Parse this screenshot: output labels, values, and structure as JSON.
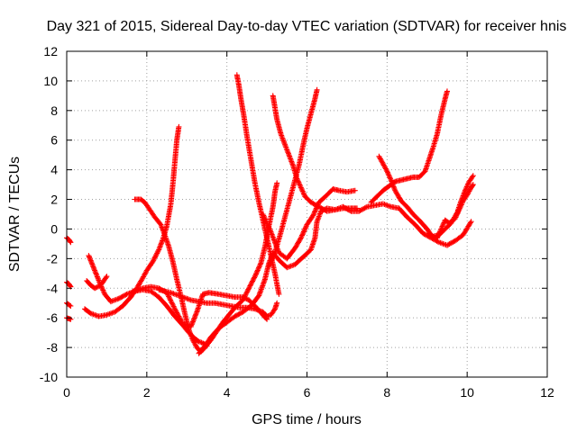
{
  "chart_data": {
    "type": "scatter",
    "title": "Day 321 of 2015, Sidereal Day-to-day VTEC variation (SDTVAR) for receiver hnis",
    "xlabel": "GPS time / hours",
    "ylabel": "SDTVAR / TECUs",
    "xlim": [
      0,
      12
    ],
    "ylim": [
      -10,
      12
    ],
    "xticks": [
      "0",
      "2",
      "4",
      "6",
      "8",
      "10",
      "12"
    ],
    "yticks": [
      "-10",
      "-8",
      "-6",
      "-4",
      "-2",
      "0",
      "2",
      "4",
      "6",
      "8",
      "10",
      "12"
    ],
    "grid": true,
    "legend": "none",
    "marker": "plus",
    "color": "#ff0000",
    "series": [
      {
        "points": [
          [
            0.0,
            -0.6
          ],
          [
            0.05,
            -0.7
          ],
          [
            0.1,
            -0.9
          ]
        ]
      },
      {
        "points": [
          [
            0.0,
            -3.6
          ],
          [
            0.05,
            -3.7
          ],
          [
            0.1,
            -3.9
          ]
        ]
      },
      {
        "points": [
          [
            0.0,
            -5.0
          ],
          [
            0.05,
            -5.1
          ],
          [
            0.1,
            -5.2
          ]
        ]
      },
      {
        "points": [
          [
            0.0,
            -6.0
          ],
          [
            0.05,
            -6.05
          ],
          [
            0.1,
            -6.1
          ]
        ]
      },
      {
        "points": [
          [
            0.5,
            -3.5
          ],
          [
            0.6,
            -3.8
          ],
          [
            0.7,
            -4.0
          ],
          [
            0.85,
            -3.8
          ],
          [
            1.0,
            -3.2
          ]
        ]
      },
      {
        "points": [
          [
            0.55,
            -1.8
          ],
          [
            0.7,
            -2.8
          ],
          [
            0.85,
            -3.8
          ],
          [
            0.95,
            -4.4
          ],
          [
            1.1,
            -4.9
          ],
          [
            1.3,
            -4.7
          ],
          [
            1.5,
            -4.4
          ],
          [
            1.7,
            -4.2
          ],
          [
            1.9,
            -4.1
          ],
          [
            2.1,
            -4.2
          ],
          [
            2.3,
            -4.6
          ],
          [
            2.5,
            -5.2
          ],
          [
            2.7,
            -5.9
          ],
          [
            2.9,
            -6.5
          ],
          [
            3.05,
            -7.0
          ],
          [
            3.2,
            -7.4
          ],
          [
            3.3,
            -7.6
          ],
          [
            3.4,
            -7.7
          ],
          [
            3.5,
            -7.9
          ]
        ]
      },
      {
        "points": [
          [
            0.45,
            -5.4
          ],
          [
            0.6,
            -5.7
          ],
          [
            0.8,
            -5.9
          ],
          [
            1.0,
            -5.8
          ],
          [
            1.2,
            -5.6
          ],
          [
            1.4,
            -5.2
          ],
          [
            1.6,
            -4.6
          ],
          [
            1.75,
            -4.0
          ],
          [
            1.9,
            -3.3
          ],
          [
            2.0,
            -2.8
          ],
          [
            2.15,
            -2.2
          ],
          [
            2.3,
            -1.4
          ],
          [
            2.4,
            -0.7
          ],
          [
            2.5,
            0.2
          ],
          [
            2.6,
            1.7
          ],
          [
            2.65,
            3.0
          ],
          [
            2.7,
            4.5
          ],
          [
            2.75,
            6.0
          ],
          [
            2.8,
            6.9
          ]
        ]
      },
      {
        "points": [
          [
            1.7,
            2.0
          ],
          [
            1.85,
            2.0
          ],
          [
            1.95,
            1.8
          ],
          [
            2.1,
            1.2
          ],
          [
            2.2,
            0.8
          ],
          [
            2.35,
            0.3
          ],
          [
            2.45,
            -0.4
          ],
          [
            2.55,
            -1.2
          ],
          [
            2.65,
            -2.2
          ],
          [
            2.75,
            -3.4
          ],
          [
            2.85,
            -4.5
          ],
          [
            2.95,
            -5.7
          ],
          [
            3.05,
            -6.8
          ],
          [
            3.15,
            -7.5
          ],
          [
            3.25,
            -8.0
          ],
          [
            3.35,
            -8.3
          ],
          [
            3.45,
            -8.0
          ],
          [
            3.6,
            -7.5
          ],
          [
            3.75,
            -6.9
          ],
          [
            3.9,
            -6.3
          ],
          [
            4.05,
            -5.8
          ],
          [
            4.2,
            -5.3
          ],
          [
            4.4,
            -4.8
          ],
          [
            4.55,
            -4.0
          ],
          [
            4.7,
            -3.2
          ],
          [
            4.85,
            -2.3
          ],
          [
            4.95,
            -1.2
          ],
          [
            5.05,
            0.2
          ],
          [
            5.15,
            1.5
          ],
          [
            5.2,
            2.5
          ],
          [
            5.25,
            3.1
          ]
        ]
      },
      {
        "points": [
          [
            2.3,
            -4.1
          ],
          [
            2.6,
            -4.3
          ],
          [
            2.9,
            -4.6
          ],
          [
            3.1,
            -4.8
          ],
          [
            3.3,
            -4.9
          ],
          [
            3.5,
            -5.0
          ],
          [
            3.7,
            -5.0
          ],
          [
            3.9,
            -5.1
          ],
          [
            4.1,
            -5.2
          ],
          [
            4.3,
            -5.3
          ],
          [
            4.5,
            -5.3
          ],
          [
            4.7,
            -5.4
          ],
          [
            4.9,
            -5.6
          ],
          [
            5.0,
            -5.9
          ],
          [
            5.1,
            -5.8
          ],
          [
            5.2,
            -5.4
          ],
          [
            5.25,
            -5.0
          ]
        ]
      },
      {
        "points": [
          [
            1.65,
            -4.2
          ],
          [
            1.9,
            -4.0
          ],
          [
            2.1,
            -3.9
          ],
          [
            2.3,
            -4.0
          ],
          [
            2.5,
            -4.3
          ],
          [
            2.7,
            -5.4
          ],
          [
            2.9,
            -6.4
          ],
          [
            3.1,
            -6.6
          ],
          [
            3.25,
            -5.6
          ],
          [
            3.4,
            -4.4
          ],
          [
            3.55,
            -4.3
          ],
          [
            3.8,
            -4.4
          ],
          [
            4.0,
            -4.5
          ],
          [
            4.2,
            -4.6
          ],
          [
            4.4,
            -4.6
          ],
          [
            4.55,
            -4.8
          ],
          [
            4.7,
            -5.2
          ],
          [
            4.9,
            -5.8
          ],
          [
            5.0,
            -6.1
          ]
        ]
      },
      {
        "points": [
          [
            3.3,
            -8.4
          ],
          [
            3.45,
            -7.9
          ],
          [
            3.6,
            -7.3
          ],
          [
            3.8,
            -6.7
          ],
          [
            4.0,
            -6.3
          ],
          [
            4.2,
            -5.9
          ],
          [
            4.4,
            -5.6
          ],
          [
            4.6,
            -5.2
          ],
          [
            4.8,
            -4.5
          ],
          [
            4.95,
            -3.4
          ],
          [
            5.05,
            -2.3
          ],
          [
            5.15,
            -1.6
          ],
          [
            5.3,
            -2.1
          ],
          [
            5.5,
            -2.6
          ],
          [
            5.7,
            -2.4
          ],
          [
            5.9,
            -1.9
          ],
          [
            6.1,
            -1.4
          ],
          [
            6.2,
            -0.6
          ],
          [
            6.25,
            0.5
          ],
          [
            6.35,
            1.2
          ],
          [
            6.5,
            1.4
          ],
          [
            6.7,
            1.3
          ],
          [
            6.9,
            1.4
          ],
          [
            7.1,
            1.4
          ],
          [
            7.25,
            1.4
          ]
        ]
      },
      {
        "points": [
          [
            4.25,
            10.4
          ],
          [
            4.3,
            9.7
          ],
          [
            4.35,
            8.8
          ],
          [
            4.42,
            7.7
          ],
          [
            4.5,
            6.3
          ],
          [
            4.6,
            4.7
          ],
          [
            4.7,
            3.1
          ],
          [
            4.8,
            1.8
          ],
          [
            4.9,
            0.6
          ],
          [
            5.0,
            -0.6
          ],
          [
            5.1,
            -1.8
          ],
          [
            5.2,
            -3.0
          ],
          [
            5.3,
            -4.4
          ]
        ]
      },
      {
        "points": [
          [
            5.15,
            9.0
          ],
          [
            5.2,
            8.2
          ],
          [
            5.25,
            7.4
          ],
          [
            5.35,
            6.4
          ],
          [
            5.45,
            5.7
          ],
          [
            5.55,
            5.0
          ],
          [
            5.65,
            4.3
          ],
          [
            5.75,
            3.4
          ],
          [
            5.85,
            2.8
          ],
          [
            5.95,
            2.2
          ],
          [
            6.1,
            1.8
          ],
          [
            6.3,
            1.5
          ],
          [
            6.5,
            1.2
          ],
          [
            6.7,
            1.3
          ],
          [
            6.9,
            1.5
          ],
          [
            7.1,
            1.2
          ],
          [
            7.3,
            1.2
          ],
          [
            7.5,
            1.5
          ],
          [
            7.7,
            1.6
          ],
          [
            7.9,
            1.7
          ],
          [
            8.1,
            1.5
          ],
          [
            8.3,
            1.4
          ],
          [
            8.5,
            0.8
          ],
          [
            8.7,
            0.3
          ],
          [
            8.9,
            -0.3
          ],
          [
            9.1,
            -0.6
          ],
          [
            9.3,
            -0.9
          ],
          [
            9.5,
            -1.1
          ],
          [
            9.7,
            -0.8
          ],
          [
            9.9,
            -0.4
          ],
          [
            10.1,
            0.5
          ]
        ]
      },
      {
        "points": [
          [
            4.9,
            1.0
          ],
          [
            5.0,
            0.4
          ],
          [
            5.1,
            -0.2
          ],
          [
            5.2,
            -0.9
          ],
          [
            5.3,
            -1.6
          ],
          [
            5.5,
            -2.0
          ],
          [
            5.7,
            -1.3
          ],
          [
            5.85,
            -0.6
          ],
          [
            6.0,
            0.3
          ],
          [
            6.15,
            0.9
          ],
          [
            6.3,
            1.8
          ],
          [
            6.5,
            2.3
          ],
          [
            6.65,
            2.7
          ],
          [
            6.8,
            2.6
          ],
          [
            7.0,
            2.5
          ],
          [
            7.2,
            2.6
          ]
        ]
      },
      {
        "points": [
          [
            5.05,
            -2.5
          ],
          [
            5.2,
            -1.6
          ],
          [
            5.35,
            -0.2
          ],
          [
            5.5,
            1.3
          ],
          [
            5.65,
            2.8
          ],
          [
            5.8,
            4.3
          ],
          [
            5.9,
            5.6
          ],
          [
            6.0,
            6.8
          ],
          [
            6.1,
            7.8
          ],
          [
            6.2,
            8.8
          ],
          [
            6.25,
            9.4
          ]
        ]
      },
      {
        "points": [
          [
            7.8,
            4.9
          ],
          [
            7.9,
            4.4
          ],
          [
            8.0,
            3.9
          ],
          [
            8.1,
            3.3
          ],
          [
            8.2,
            2.6
          ],
          [
            8.35,
            1.9
          ],
          [
            8.5,
            1.5
          ],
          [
            8.65,
            1.0
          ],
          [
            8.8,
            0.6
          ],
          [
            9.0,
            0.0
          ],
          [
            9.15,
            -0.6
          ],
          [
            9.25,
            -0.6
          ],
          [
            9.35,
            0.0
          ],
          [
            9.45,
            0.6
          ],
          [
            9.55,
            0.4
          ],
          [
            9.7,
            0.7
          ],
          [
            9.8,
            1.3
          ],
          [
            9.9,
            1.9
          ],
          [
            10.0,
            2.3
          ],
          [
            10.1,
            2.8
          ],
          [
            10.15,
            3.0
          ]
        ]
      },
      {
        "points": [
          [
            7.6,
            1.8
          ],
          [
            7.75,
            2.2
          ],
          [
            7.9,
            2.6
          ],
          [
            8.05,
            2.9
          ],
          [
            8.2,
            3.2
          ],
          [
            8.35,
            3.3
          ],
          [
            8.5,
            3.4
          ],
          [
            8.65,
            3.5
          ],
          [
            8.8,
            3.5
          ],
          [
            8.95,
            3.9
          ],
          [
            9.05,
            4.7
          ],
          [
            9.15,
            5.5
          ],
          [
            9.25,
            6.4
          ],
          [
            9.35,
            7.7
          ],
          [
            9.45,
            8.8
          ],
          [
            9.5,
            9.3
          ]
        ]
      },
      {
        "points": [
          [
            9.05,
            -0.3
          ],
          [
            9.15,
            -0.5
          ],
          [
            9.3,
            -0.4
          ],
          [
            9.45,
            0.0
          ],
          [
            9.6,
            0.4
          ],
          [
            9.75,
            1.1
          ],
          [
            9.85,
            1.9
          ],
          [
            9.95,
            2.6
          ],
          [
            10.05,
            3.2
          ],
          [
            10.15,
            3.6
          ]
        ]
      }
    ]
  }
}
